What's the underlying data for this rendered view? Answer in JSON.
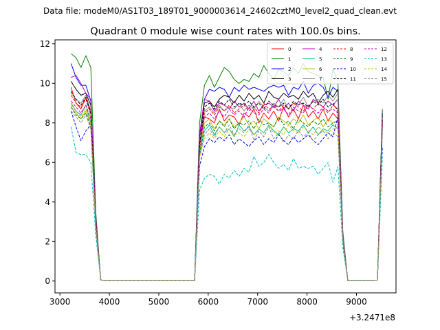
{
  "header": {
    "data_file": "Data file: modeM0/AS1T03_189T01_9000003614_24602cztM0_level2_quad_clean.evt"
  },
  "chart_data": {
    "type": "line",
    "title": "Quadrant 0 module wise count rates with 100.0s bins.",
    "xlabel": "",
    "ylabel": "",
    "x_offset_label": "+3.2471e8",
    "xlim": [
      2900,
      9800
    ],
    "ylim": [
      -0.6,
      12.2
    ],
    "xticks": [
      3000,
      4000,
      5000,
      6000,
      7000,
      8000,
      9000
    ],
    "xtick_labels": [
      "3000",
      "4000",
      "5000",
      "6000",
      "7000",
      "8000",
      "9000"
    ],
    "yticks": [
      0,
      2,
      4,
      6,
      8,
      10,
      12
    ],
    "ytick_labels": [
      "0",
      "2",
      "4",
      "6",
      "8",
      "10",
      "12"
    ],
    "grid": false,
    "legend": "top-right",
    "x": [
      3225,
      3325,
      3425,
      3525,
      3625,
      3725,
      3825,
      3925,
      4025,
      4125,
      4225,
      4325,
      4425,
      4525,
      4625,
      4725,
      4825,
      4925,
      5025,
      5125,
      5225,
      5325,
      5425,
      5525,
      5625,
      5725,
      5825,
      5925,
      6025,
      6125,
      6225,
      6325,
      6425,
      6525,
      6625,
      6725,
      6825,
      6925,
      7025,
      7125,
      7225,
      7325,
      7425,
      7525,
      7625,
      7725,
      7825,
      7925,
      8025,
      8125,
      8225,
      8325,
      8425,
      8525,
      8625,
      8725,
      8825,
      8925,
      9025,
      9125,
      9225,
      9325,
      9425,
      9525
    ],
    "series": [
      {
        "name": "0",
        "color": "#ff0000",
        "dash": "solid",
        "values": [
          9.8,
          9.0,
          8.7,
          9.3,
          8.5,
          3.1,
          0.05,
          0.02,
          0.02,
          0.02,
          0.02,
          0.02,
          0.02,
          0.02,
          0.02,
          0.02,
          0.02,
          0.02,
          0.02,
          0.02,
          0.02,
          0.02,
          0.02,
          0.02,
          0.02,
          0.02,
          6.9,
          8.3,
          8.2,
          8.0,
          8.7,
          8.1,
          8.4,
          8.3,
          7.9,
          8.5,
          8.3,
          8.7,
          8.0,
          8.5,
          8.2,
          8.6,
          8.1,
          8.8,
          8.3,
          8.7,
          8.2,
          8.9,
          8.3,
          8.6,
          8.2,
          8.7,
          8.1,
          8.5,
          8.2,
          2.0,
          0.02,
          0.02,
          0.02,
          0.02,
          0.02,
          0.02,
          0.03,
          8.0
        ]
      },
      {
        "name": "1",
        "color": "#008000",
        "dash": "solid",
        "values": [
          11.5,
          11.3,
          10.8,
          11.4,
          10.8,
          3.5,
          0.05,
          0.02,
          0.02,
          0.02,
          0.02,
          0.02,
          0.02,
          0.02,
          0.02,
          0.02,
          0.02,
          0.02,
          0.02,
          0.02,
          0.02,
          0.02,
          0.02,
          0.02,
          0.02,
          0.02,
          8.0,
          9.9,
          10.4,
          9.8,
          10.3,
          10.8,
          10.6,
          10.2,
          10.0,
          10.2,
          10.1,
          10.5,
          10.3,
          10.9,
          10.5,
          10.2,
          10.7,
          10.6,
          10.4,
          10.8,
          10.5,
          11.0,
          10.6,
          10.5,
          10.4,
          10.3,
          9.2,
          10.7,
          10.1,
          2.5,
          0.02,
          0.02,
          0.02,
          0.02,
          0.02,
          0.02,
          0.03,
          8.7
        ]
      },
      {
        "name": "2",
        "color": "#0000ff",
        "dash": "solid",
        "values": [
          11.0,
          10.3,
          9.9,
          9.9,
          9.1,
          3.2,
          0.05,
          0.02,
          0.02,
          0.02,
          0.02,
          0.02,
          0.02,
          0.02,
          0.02,
          0.02,
          0.02,
          0.02,
          0.02,
          0.02,
          0.02,
          0.02,
          0.02,
          0.02,
          0.02,
          0.02,
          7.4,
          9.2,
          9.7,
          9.6,
          9.8,
          9.7,
          9.3,
          9.8,
          9.6,
          9.9,
          9.7,
          9.8,
          9.7,
          9.6,
          9.8,
          9.9,
          9.8,
          9.9,
          9.4,
          9.8,
          9.7,
          10.1,
          9.5,
          9.9,
          10.0,
          9.8,
          9.3,
          9.8,
          9.6,
          2.3,
          0.02,
          0.02,
          0.02,
          0.02,
          0.02,
          0.02,
          0.03,
          8.4
        ]
      },
      {
        "name": "3",
        "color": "#000000",
        "dash": "solid",
        "values": [
          10.1,
          9.7,
          9.4,
          9.5,
          8.9,
          3.0,
          0.05,
          0.02,
          0.02,
          0.02,
          0.02,
          0.02,
          0.02,
          0.02,
          0.02,
          0.02,
          0.02,
          0.02,
          0.02,
          0.02,
          0.02,
          0.02,
          0.02,
          0.02,
          0.02,
          0.02,
          7.3,
          9.0,
          9.1,
          8.8,
          9.2,
          9.4,
          9.3,
          9.0,
          9.4,
          9.1,
          9.5,
          9.2,
          9.4,
          9.0,
          9.6,
          9.3,
          9.2,
          9.5,
          9.3,
          9.4,
          9.2,
          9.6,
          9.3,
          9.5,
          9.0,
          9.4,
          9.6,
          9.3,
          9.7,
          2.3,
          0.02,
          0.02,
          0.02,
          0.02,
          0.02,
          0.02,
          0.03,
          8.5
        ]
      },
      {
        "name": "4",
        "color": "#c000c0",
        "dash": "solid",
        "values": [
          10.3,
          10.4,
          10.0,
          9.5,
          9.2,
          3.2,
          0.05,
          0.02,
          0.02,
          0.02,
          0.02,
          0.02,
          0.02,
          0.02,
          0.02,
          0.02,
          0.02,
          0.02,
          0.02,
          0.02,
          0.02,
          0.02,
          0.02,
          0.02,
          0.02,
          0.02,
          7.4,
          9.2,
          9.1,
          8.6,
          9.0,
          8.9,
          8.7,
          9.1,
          8.8,
          9.0,
          8.7,
          9.1,
          8.6,
          8.9,
          9.0,
          8.8,
          9.2,
          8.7,
          9.0,
          8.6,
          9.1,
          8.9,
          8.7,
          9.2,
          9.0,
          8.8,
          9.1,
          8.9,
          9.2,
          2.3,
          0.02,
          0.02,
          0.02,
          0.02,
          0.02,
          0.02,
          0.03,
          8.3
        ]
      },
      {
        "name": "5",
        "color": "#00c080",
        "dash": "solid",
        "values": [
          9.0,
          8.6,
          8.4,
          8.9,
          8.0,
          2.9,
          0.05,
          0.02,
          0.02,
          0.02,
          0.02,
          0.02,
          0.02,
          0.02,
          0.02,
          0.02,
          0.02,
          0.02,
          0.02,
          0.02,
          0.02,
          0.02,
          0.02,
          0.02,
          0.02,
          0.02,
          6.5,
          7.6,
          7.9,
          7.4,
          7.8,
          7.5,
          7.7,
          7.3,
          7.9,
          7.6,
          7.8,
          7.4,
          7.7,
          7.5,
          7.9,
          7.6,
          7.4,
          7.8,
          7.5,
          7.7,
          7.6,
          7.9,
          7.5,
          7.8,
          7.4,
          7.7,
          7.6,
          7.9,
          7.7,
          2.1,
          0.02,
          0.02,
          0.02,
          0.02,
          0.02,
          0.02,
          0.03,
          7.8
        ]
      },
      {
        "name": "6",
        "color": "#bdbd00",
        "dash": "solid",
        "values": [
          8.8,
          8.5,
          8.2,
          8.6,
          8.0,
          2.9,
          0.05,
          0.02,
          0.02,
          0.02,
          0.02,
          0.02,
          0.02,
          0.02,
          0.02,
          0.02,
          0.02,
          0.02,
          0.02,
          0.02,
          0.02,
          0.02,
          0.02,
          0.02,
          0.02,
          0.02,
          6.6,
          8.0,
          8.2,
          7.7,
          8.1,
          7.9,
          8.2,
          7.8,
          8.0,
          8.3,
          7.9,
          8.1,
          7.7,
          8.2,
          8.0,
          7.8,
          8.3,
          8.1,
          7.9,
          8.2,
          8.0,
          8.4,
          7.9,
          8.1,
          8.3,
          7.8,
          8.2,
          8.0,
          8.1,
          2.2,
          0.02,
          0.02,
          0.02,
          0.02,
          0.02,
          0.02,
          0.03,
          8.0
        ]
      },
      {
        "name": "7",
        "color": "#888888",
        "dash": "solid",
        "values": [
          9.5,
          9.2,
          9.0,
          9.4,
          8.6,
          3.0,
          0.05,
          0.02,
          0.02,
          0.02,
          0.02,
          0.02,
          0.02,
          0.02,
          0.02,
          0.02,
          0.02,
          0.02,
          0.02,
          0.02,
          0.02,
          0.02,
          0.02,
          0.02,
          0.02,
          0.02,
          7.0,
          8.6,
          8.8,
          8.5,
          8.9,
          8.6,
          8.8,
          8.7,
          9.0,
          8.6,
          8.9,
          8.7,
          9.1,
          8.8,
          8.6,
          9.0,
          8.8,
          9.2,
          8.7,
          9.0,
          8.9,
          9.3,
          8.8,
          9.1,
          9.2,
          9.0,
          9.4,
          9.1,
          9.5,
          2.3,
          0.02,
          0.02,
          0.02,
          0.02,
          0.02,
          0.02,
          0.03,
          8.2
        ]
      },
      {
        "name": "8",
        "color": "#ff0000",
        "dash": "dashed",
        "values": [
          9.4,
          9.0,
          8.8,
          9.2,
          8.4,
          3.0,
          0.05,
          0.02,
          0.02,
          0.02,
          0.02,
          0.02,
          0.02,
          0.02,
          0.02,
          0.02,
          0.02,
          0.02,
          0.02,
          0.02,
          0.02,
          0.02,
          0.02,
          0.02,
          0.02,
          0.02,
          6.9,
          8.5,
          8.7,
          8.4,
          8.8,
          8.6,
          8.9,
          8.5,
          8.7,
          8.9,
          8.6,
          8.8,
          8.5,
          9.0,
          8.7,
          8.8,
          8.6,
          8.9,
          8.7,
          9.0,
          8.8,
          8.6,
          8.9,
          8.7,
          9.0,
          8.8,
          8.5,
          8.9,
          8.7,
          2.2,
          0.02,
          0.02,
          0.02,
          0.02,
          0.02,
          0.02,
          0.03,
          8.1
        ]
      },
      {
        "name": "9",
        "color": "#008000",
        "dash": "dashed",
        "values": [
          8.8,
          8.4,
          8.2,
          8.5,
          7.8,
          2.8,
          0.05,
          0.02,
          0.02,
          0.02,
          0.02,
          0.02,
          0.02,
          0.02,
          0.02,
          0.02,
          0.02,
          0.02,
          0.02,
          0.02,
          0.02,
          0.02,
          0.02,
          0.02,
          0.02,
          0.02,
          6.4,
          7.8,
          8.0,
          7.6,
          8.1,
          7.8,
          8.2,
          7.7,
          8.0,
          7.9,
          8.1,
          7.7,
          8.2,
          7.9,
          8.0,
          7.8,
          8.3,
          7.9,
          8.1,
          7.7,
          8.2,
          8.0,
          7.8,
          8.1,
          7.9,
          8.2,
          7.8,
          8.0,
          8.1,
          2.1,
          0.02,
          0.02,
          0.02,
          0.02,
          0.02,
          0.02,
          0.03,
          7.9
        ]
      },
      {
        "name": "10",
        "color": "#0000ff",
        "dash": "dashed",
        "values": [
          8.6,
          7.8,
          7.1,
          7.6,
          7.9,
          2.7,
          0.05,
          0.02,
          0.02,
          0.02,
          0.02,
          0.02,
          0.02,
          0.02,
          0.02,
          0.02,
          0.02,
          0.02,
          0.02,
          0.02,
          0.02,
          0.02,
          0.02,
          0.02,
          0.02,
          0.02,
          5.8,
          6.8,
          7.2,
          7.0,
          7.3,
          7.1,
          7.4,
          6.9,
          7.2,
          7.0,
          6.8,
          7.1,
          7.3,
          6.9,
          7.2,
          7.0,
          7.4,
          7.1,
          6.9,
          7.3,
          7.0,
          7.2,
          7.4,
          7.1,
          6.9,
          7.2,
          7.5,
          7.3,
          8.3,
          2.0,
          0.02,
          0.02,
          0.02,
          0.02,
          0.02,
          0.02,
          0.03,
          6.8
        ]
      },
      {
        "name": "11",
        "color": "#000000",
        "dash": "dashed",
        "values": [
          9.6,
          9.2,
          8.9,
          9.3,
          8.5,
          3.0,
          0.05,
          0.02,
          0.02,
          0.02,
          0.02,
          0.02,
          0.02,
          0.02,
          0.02,
          0.02,
          0.02,
          0.02,
          0.02,
          0.02,
          0.02,
          0.02,
          0.02,
          0.02,
          0.02,
          0.02,
          6.9,
          8.8,
          9.0,
          8.7,
          9.1,
          8.9,
          9.2,
          8.8,
          9.0,
          8.9,
          9.1,
          8.8,
          9.0,
          8.7,
          9.1,
          8.9,
          8.8,
          9.0,
          8.7,
          9.1,
          8.9,
          9.0,
          8.8,
          9.1,
          8.9,
          9.2,
          8.8,
          9.0,
          8.6,
          2.2,
          0.02,
          0.02,
          0.02,
          0.02,
          0.02,
          0.02,
          0.03,
          8.2
        ]
      },
      {
        "name": "12",
        "color": "#c000c0",
        "dash": "dashed",
        "values": [
          9.1,
          8.8,
          8.5,
          8.9,
          8.2,
          2.9,
          0.05,
          0.02,
          0.02,
          0.02,
          0.02,
          0.02,
          0.02,
          0.02,
          0.02,
          0.02,
          0.02,
          0.02,
          0.02,
          0.02,
          0.02,
          0.02,
          0.02,
          0.02,
          0.02,
          0.02,
          6.7,
          8.3,
          8.5,
          8.2,
          8.6,
          8.3,
          8.7,
          8.4,
          8.6,
          8.3,
          8.8,
          8.5,
          8.4,
          8.7,
          8.5,
          8.9,
          8.6,
          8.7,
          8.4,
          8.8,
          8.6,
          8.5,
          8.9,
          8.7,
          8.5,
          8.8,
          8.6,
          8.7,
          8.5,
          2.2,
          0.02,
          0.02,
          0.02,
          0.02,
          0.02,
          0.02,
          0.03,
          8.0
        ]
      },
      {
        "name": "13",
        "color": "#00bfbf",
        "dash": "dashed",
        "values": [
          7.8,
          6.5,
          6.4,
          6.4,
          6.0,
          2.3,
          0.05,
          0.02,
          0.02,
          0.02,
          0.02,
          0.02,
          0.02,
          0.02,
          0.02,
          0.02,
          0.02,
          0.02,
          0.02,
          0.02,
          0.02,
          0.02,
          0.02,
          0.02,
          0.02,
          0.02,
          4.6,
          5.2,
          5.4,
          5.3,
          4.9,
          5.4,
          5.2,
          5.6,
          5.3,
          5.7,
          5.5,
          6.3,
          5.8,
          6.0,
          6.4,
          6.0,
          5.7,
          5.9,
          5.6,
          6.2,
          5.7,
          5.8,
          5.7,
          5.8,
          5.4,
          5.7,
          6.0,
          5.0,
          5.8,
          1.7,
          0.02,
          0.02,
          0.02,
          0.02,
          0.02,
          0.02,
          0.03,
          6.3
        ]
      },
      {
        "name": "14",
        "color": "#bdbd00",
        "dash": "dashed",
        "values": [
          8.9,
          8.6,
          8.3,
          8.7,
          7.9,
          2.8,
          0.05,
          0.02,
          0.02,
          0.02,
          0.02,
          0.02,
          0.02,
          0.02,
          0.02,
          0.02,
          0.02,
          0.02,
          0.02,
          0.02,
          0.02,
          0.02,
          0.02,
          0.02,
          0.02,
          0.02,
          6.2,
          7.2,
          7.5,
          7.2,
          7.6,
          7.3,
          7.7,
          7.4,
          7.5,
          7.3,
          7.7,
          7.4,
          7.6,
          7.3,
          7.8,
          7.5,
          7.6,
          7.4,
          7.9,
          7.6,
          7.5,
          7.8,
          7.6,
          7.4,
          7.8,
          7.6,
          7.5,
          7.7,
          7.8,
          2.1,
          0.02,
          0.02,
          0.02,
          0.02,
          0.02,
          0.02,
          0.03,
          7.6
        ]
      },
      {
        "name": "15",
        "color": "#888888",
        "dash": "dashed",
        "values": [
          8.6,
          8.3,
          8.0,
          8.4,
          7.7,
          2.8,
          0.05,
          0.02,
          0.02,
          0.02,
          0.02,
          0.02,
          0.02,
          0.02,
          0.02,
          0.02,
          0.02,
          0.02,
          0.02,
          0.02,
          0.02,
          0.02,
          0.02,
          0.02,
          0.02,
          0.02,
          6.3,
          7.4,
          7.7,
          7.3,
          7.8,
          7.5,
          7.9,
          7.4,
          7.7,
          7.5,
          7.9,
          7.1,
          7.6,
          7.3,
          7.8,
          7.2,
          7.5,
          7.0,
          7.4,
          7.2,
          7.6,
          7.3,
          7.5,
          7.1,
          7.4,
          7.6,
          7.2,
          7.5,
          7.3,
          2.1,
          0.02,
          0.02,
          0.02,
          0.02,
          0.02,
          0.02,
          0.03,
          7.5
        ]
      }
    ]
  }
}
